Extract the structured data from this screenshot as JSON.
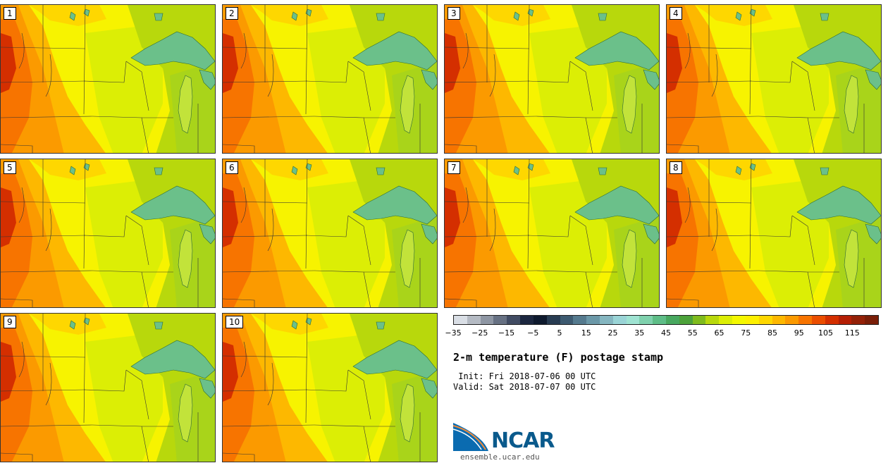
{
  "panels": [
    "1",
    "2",
    "3",
    "4",
    "5",
    "6",
    "7",
    "8",
    "9",
    "10"
  ],
  "colorbar": {
    "colors": [
      "#d9dee5",
      "#b4bac3",
      "#8e96a3",
      "#677183",
      "#414c63",
      "#1c2740",
      "#0e1a2e",
      "#283c52",
      "#3d5a70",
      "#557a8e",
      "#6b98a8",
      "#85b6c0",
      "#9ad4d6",
      "#9fe3d2",
      "#7fd1ad",
      "#5ebd87",
      "#48a85f",
      "#4ca23a",
      "#7fbb1d",
      "#b8d80c",
      "#dcee05",
      "#f4f800",
      "#fdf000",
      "#fed700",
      "#fdb800",
      "#fb9a00",
      "#f77400",
      "#eb4e00",
      "#d42f00",
      "#b51f05",
      "#942108",
      "#7a1e08"
    ],
    "ticks": [
      "−35",
      "−25",
      "−15",
      "−5",
      "5",
      "15",
      "25",
      "35",
      "45",
      "55",
      "65",
      "75",
      "85",
      "95",
      "105",
      "115"
    ]
  },
  "title": "2-m temperature (F) postage stamp",
  "init": " Init: Fri 2018-07-06 00 UTC",
  "valid": "Valid: Sat 2018-07-07 00 UTC",
  "logo": {
    "name": "NCAR",
    "url": "ensemble.ucar.edu"
  }
}
